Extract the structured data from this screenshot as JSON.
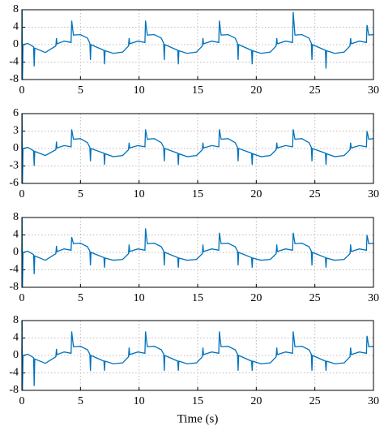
{
  "chart_data": [
    {
      "type": "line",
      "color": "#0072bd",
      "xlim": [
        0,
        30
      ],
      "xticks": [
        0,
        5,
        10,
        15,
        20,
        25,
        30
      ],
      "ylim": [
        -8,
        8
      ],
      "yticks": [
        -8,
        -4,
        0,
        4,
        8
      ],
      "grid": true,
      "x": [
        0,
        0.02,
        0.05,
        0.1,
        0.5,
        1.0,
        1.05,
        1.1,
        2.0,
        2.9,
        2.95,
        3.0,
        3.6,
        4.2,
        4.25,
        4.4,
        5.0,
        5.6,
        5.8,
        5.85,
        5.9,
        7.0,
        7.05,
        7.1,
        7.8,
        8.6,
        9.1,
        9.15,
        9.2,
        9.9,
        10.5,
        10.55,
        10.7,
        11.3,
        11.9,
        12.1,
        12.15,
        12.2,
        13.3,
        13.35,
        13.4,
        14.1,
        14.9,
        15.4,
        15.45,
        15.5,
        16.2,
        16.8,
        16.85,
        17.0,
        17.6,
        18.2,
        18.4,
        18.45,
        18.5,
        19.6,
        19.65,
        19.7,
        20.4,
        21.2,
        21.7,
        21.75,
        21.8,
        22.5,
        23.1,
        23.15,
        23.3,
        23.9,
        24.5,
        24.7,
        24.75,
        24.8,
        25.9,
        25.95,
        26.0,
        26.7,
        27.5,
        28.0,
        28.05,
        28.1,
        28.8,
        29.4,
        29.45,
        29.6,
        30.0
      ],
      "values": [
        0,
        8,
        -8,
        0,
        0.3,
        -0.5,
        -5,
        -0.8,
        -1.8,
        -0.3,
        1.5,
        0.2,
        0.8,
        0.5,
        5.5,
        2.2,
        2.3,
        1.5,
        0.3,
        -3.5,
        0,
        -1.3,
        -4.5,
        -1.4,
        -2.0,
        -1.7,
        -0.3,
        1.5,
        0.2,
        0.8,
        0.5,
        5.5,
        2.2,
        2.3,
        1.5,
        0.3,
        -3.5,
        0,
        -1.3,
        -4.5,
        -1.4,
        -2.0,
        -1.7,
        -0.3,
        1.5,
        0.2,
        0.8,
        0.5,
        5.5,
        2.2,
        2.3,
        1.5,
        0.3,
        -3.5,
        0,
        -1.3,
        -4.5,
        -1.4,
        -2.0,
        -1.7,
        -0.3,
        1.5,
        0.2,
        0.8,
        0.5,
        7.5,
        2.2,
        2.3,
        1.5,
        0.3,
        -3.5,
        0,
        -1.3,
        -5.5,
        -1.4,
        -2.0,
        -1.7,
        -0.3,
        1.5,
        0.2,
        0.8,
        0.5,
        4.5,
        2.2,
        2.3
      ]
    },
    {
      "type": "line",
      "color": "#0072bd",
      "xlim": [
        0,
        30
      ],
      "xticks": [
        0,
        5,
        10,
        15,
        20,
        25,
        30
      ],
      "ylim": [
        -6,
        6
      ],
      "yticks": [
        -6,
        -3,
        0,
        3,
        6
      ],
      "grid": true,
      "x": [
        0,
        0.02,
        0.05,
        0.1,
        0.5,
        1.0,
        1.05,
        1.1,
        2.0,
        2.9,
        2.95,
        3.0,
        3.6,
        4.2,
        4.25,
        4.4,
        5.0,
        5.6,
        5.8,
        5.85,
        5.9,
        7.0,
        7.05,
        7.1,
        7.8,
        8.6,
        9.1,
        9.15,
        9.2,
        9.9,
        10.5,
        10.55,
        10.7,
        11.3,
        11.9,
        12.1,
        12.15,
        12.2,
        13.3,
        13.35,
        13.4,
        14.1,
        14.9,
        15.4,
        15.45,
        15.5,
        16.2,
        16.8,
        16.85,
        17.0,
        17.6,
        18.2,
        18.4,
        18.45,
        18.5,
        19.6,
        19.65,
        19.7,
        20.4,
        21.2,
        21.7,
        21.75,
        21.8,
        22.5,
        23.1,
        23.15,
        23.3,
        23.9,
        24.5,
        24.7,
        24.75,
        24.8,
        25.9,
        25.95,
        26.0,
        26.7,
        27.5,
        28.0,
        28.05,
        28.1,
        28.8,
        29.4,
        29.45,
        29.6,
        30.0
      ],
      "values": [
        0,
        6,
        -6,
        0,
        0.2,
        -0.4,
        -3,
        -0.5,
        -1.2,
        -0.2,
        1.2,
        0.1,
        0.5,
        0.3,
        3.3,
        1.6,
        1.7,
        1.0,
        0.2,
        -2.2,
        0,
        -0.8,
        -2.8,
        -0.9,
        -1.4,
        -1.2,
        -0.2,
        1.0,
        0.1,
        0.5,
        0.3,
        3.3,
        1.6,
        1.7,
        1.0,
        0.2,
        -2.2,
        0,
        -0.8,
        -2.8,
        -0.9,
        -1.4,
        -1.2,
        -0.2,
        1.0,
        0.1,
        0.5,
        0.3,
        3.3,
        1.6,
        1.7,
        1.0,
        0.2,
        -2.2,
        0,
        -0.8,
        -2.8,
        -0.9,
        -1.4,
        -1.2,
        -0.2,
        1.0,
        0.1,
        0.5,
        0.3,
        3.3,
        1.6,
        1.7,
        1.0,
        0.2,
        -2.2,
        0,
        -0.8,
        -2.8,
        -0.9,
        -1.4,
        -1.2,
        -0.2,
        1.0,
        0.1,
        0.5,
        0.3,
        3.0,
        1.6,
        1.7
      ]
    },
    {
      "type": "line",
      "color": "#0072bd",
      "xlim": [
        0,
        30
      ],
      "xticks": [
        0,
        5,
        10,
        15,
        20,
        25,
        30
      ],
      "ylim": [
        -8,
        8
      ],
      "yticks": [
        -8,
        -4,
        0,
        4,
        8
      ],
      "grid": true,
      "x": [
        0,
        0.02,
        0.05,
        0.1,
        0.5,
        1.0,
        1.05,
        1.1,
        2.0,
        2.9,
        2.95,
        3.0,
        3.6,
        4.2,
        4.25,
        4.4,
        5.0,
        5.6,
        5.8,
        5.85,
        5.9,
        7.0,
        7.05,
        7.1,
        7.8,
        8.6,
        9.1,
        9.15,
        9.2,
        9.9,
        10.5,
        10.55,
        10.7,
        11.3,
        11.9,
        12.1,
        12.15,
        12.2,
        13.3,
        13.35,
        13.4,
        14.1,
        14.9,
        15.4,
        15.45,
        15.5,
        16.2,
        16.8,
        16.85,
        17.0,
        17.6,
        18.2,
        18.4,
        18.45,
        18.5,
        19.6,
        19.65,
        19.7,
        20.4,
        21.2,
        21.7,
        21.75,
        21.8,
        22.5,
        23.1,
        23.15,
        23.3,
        23.9,
        24.5,
        24.7,
        24.75,
        24.8,
        25.9,
        25.95,
        26.0,
        26.7,
        27.5,
        28.0,
        28.05,
        28.1,
        28.8,
        29.4,
        29.45,
        29.6,
        30.0
      ],
      "values": [
        0,
        8,
        -8,
        0,
        0.3,
        -0.5,
        -5,
        -0.8,
        -1.8,
        -0.3,
        1.5,
        0.2,
        0.8,
        0.5,
        3.5,
        2.0,
        2.1,
        1.3,
        0.3,
        -3,
        0,
        -1.2,
        -3.5,
        -1.3,
        -1.8,
        -1.6,
        -0.3,
        1.8,
        0.2,
        0.8,
        0.5,
        5.5,
        2.0,
        2.1,
        1.3,
        0.3,
        -3,
        0,
        -1.2,
        -3.5,
        -1.3,
        -1.8,
        -1.6,
        -0.3,
        1.8,
        0.2,
        0.8,
        0.5,
        4.5,
        2.0,
        2.1,
        1.3,
        0.3,
        -3,
        0,
        -1.2,
        -3.5,
        -1.3,
        -1.8,
        -1.6,
        -0.3,
        1.8,
        0.2,
        0.8,
        0.5,
        4.5,
        2.0,
        2.1,
        1.3,
        0.3,
        -3,
        0,
        -1.2,
        -3.5,
        -1.3,
        -1.8,
        -1.6,
        -0.3,
        1.8,
        0.2,
        0.8,
        0.5,
        4.0,
        2.0,
        2.1
      ]
    },
    {
      "type": "line",
      "color": "#0072bd",
      "xlim": [
        0,
        30
      ],
      "xticks": [
        0,
        5,
        10,
        15,
        20,
        25,
        30
      ],
      "ylim": [
        -8,
        8
      ],
      "yticks": [
        -8,
        -4,
        0,
        4,
        8
      ],
      "grid": true,
      "xlabel": "Time (s)",
      "x": [
        0,
        0.02,
        0.05,
        0.1,
        0.5,
        1.0,
        1.05,
        1.1,
        2.0,
        2.9,
        2.95,
        3.0,
        3.6,
        4.2,
        4.25,
        4.4,
        5.0,
        5.6,
        5.8,
        5.85,
        5.9,
        7.0,
        7.05,
        7.1,
        7.8,
        8.6,
        9.1,
        9.15,
        9.2,
        9.9,
        10.5,
        10.55,
        10.7,
        11.3,
        11.9,
        12.1,
        12.15,
        12.2,
        13.3,
        13.35,
        13.4,
        14.1,
        14.9,
        15.4,
        15.45,
        15.5,
        16.2,
        16.8,
        16.85,
        17.0,
        17.6,
        18.2,
        18.4,
        18.45,
        18.5,
        19.6,
        19.65,
        19.7,
        20.4,
        21.2,
        21.7,
        21.75,
        21.8,
        22.5,
        23.1,
        23.15,
        23.3,
        23.9,
        24.5,
        24.7,
        24.75,
        24.8,
        25.9,
        25.95,
        26.0,
        26.7,
        27.5,
        28.0,
        28.05,
        28.1,
        28.8,
        29.4,
        29.45,
        29.6,
        30.0
      ],
      "values": [
        0,
        8,
        -8,
        0,
        0.3,
        -0.5,
        -7,
        -0.8,
        -1.8,
        -0.3,
        1.5,
        0.2,
        0.8,
        0.5,
        5.5,
        2.0,
        2.1,
        1.3,
        0.3,
        -3.5,
        0,
        -1.3,
        -3.5,
        -1.3,
        -1.9,
        -1.7,
        -0.3,
        1.8,
        0.2,
        0.8,
        0.5,
        5.5,
        2.0,
        2.1,
        1.3,
        0.3,
        -3.5,
        0,
        -1.3,
        -3.5,
        -1.3,
        -1.9,
        -1.7,
        -0.3,
        1.8,
        0.2,
        0.8,
        0.5,
        5.5,
        2.0,
        2.1,
        1.3,
        0.3,
        -3.5,
        0,
        -1.3,
        -3.5,
        -1.3,
        -1.9,
        -1.7,
        -0.3,
        1.8,
        0.2,
        0.8,
        0.5,
        5.5,
        2.0,
        2.1,
        1.3,
        0.3,
        -3.5,
        0,
        -1.3,
        -3.5,
        -1.3,
        -1.9,
        -1.7,
        -0.3,
        1.8,
        0.2,
        0.8,
        0.5,
        4.5,
        2.0,
        2.1
      ]
    }
  ]
}
